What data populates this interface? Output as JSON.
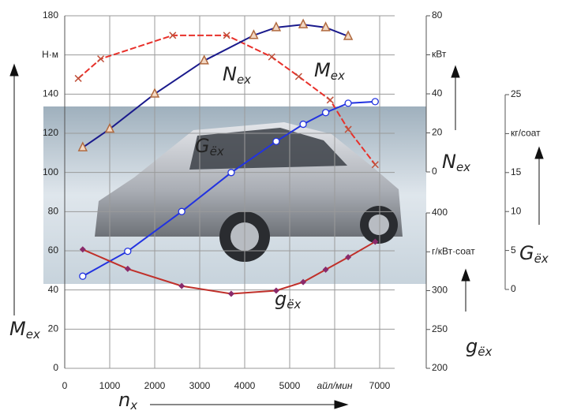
{
  "chart_data": {
    "type": "line",
    "xlim": [
      0,
      7000
    ],
    "xticks": [
      0,
      1000,
      2000,
      3000,
      4000,
      5000,
      {
        "value": 6000,
        "label": "айл/мин"
      },
      7000
    ],
    "ylim": [
      0,
      180
    ],
    "yticks": [
      0,
      20,
      40,
      60,
      80,
      100,
      120,
      140,
      {
        "value": 160,
        "label": "Н·м"
      },
      180
    ],
    "y2lim": [
      0,
      80
    ],
    "y2ticks": [
      0,
      20,
      40,
      {
        "value": 60,
        "label": "кВт"
      },
      80
    ],
    "y3lim": [
      200,
      400
    ],
    "y3ticks": [
      200,
      250,
      300,
      {
        "value": 350,
        "label": "г/кВт·соат"
      },
      400
    ],
    "y4lim": [
      0,
      25
    ],
    "y4ticks": [
      0,
      5,
      10,
      15,
      {
        "value": 20,
        "label": "кг/соат"
      },
      25
    ],
    "grid": true,
    "x_label": {
      "name": "n",
      "subscript": "x"
    },
    "series": [
      {
        "name": "M",
        "subscript": "ex",
        "color": "#e8302a",
        "marker": "x",
        "marker_color": "#c0503a",
        "axis": "y",
        "x": [
          300,
          800,
          2400,
          3600,
          4600,
          5200,
          5900,
          6300,
          6900
        ],
        "values": [
          148,
          158,
          170,
          170,
          159,
          149,
          137,
          122,
          104
        ]
      },
      {
        "name": "N",
        "subscript": "ex",
        "color": "#1a1a8c",
        "marker": "triangle",
        "marker_color": "#b06a40",
        "axis": "y2",
        "x": [
          400,
          1000,
          2000,
          3100,
          4200,
          4700,
          5300,
          5800,
          6300
        ],
        "values": [
          12.5,
          22,
          40,
          57,
          70,
          74,
          75.5,
          74,
          69.5
        ]
      },
      {
        "name": "G",
        "subscript": "ёх",
        "color": "#2233e0",
        "marker": "circle",
        "marker_color": "#2233e0",
        "axis": "y4",
        "x": [
          400,
          1400,
          2600,
          3700,
          4700,
          5300,
          5800,
          6300,
          6900
        ],
        "values": [
          1.7,
          4.9,
          10,
          15,
          19,
          21.2,
          22.7,
          23.9,
          24.1
        ]
      },
      {
        "name": "g",
        "subscript": "ёх",
        "color": "#c0302a",
        "marker": "diamond",
        "marker_color": "#8a2a6a",
        "axis": "y3",
        "x": [
          400,
          1400,
          2600,
          3700,
          4700,
          5300,
          5800,
          6300,
          6900
        ],
        "values": [
          353,
          328,
          306,
          296,
          300,
          311,
          327,
          343,
          363
        ]
      }
    ]
  }
}
